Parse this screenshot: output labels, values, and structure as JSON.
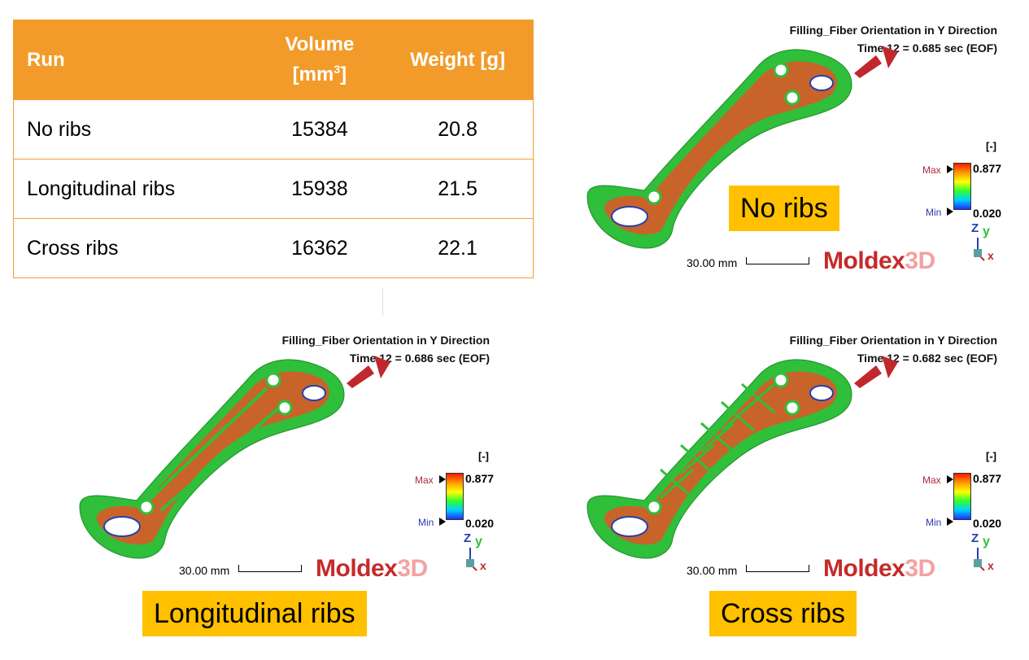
{
  "table": {
    "headers": {
      "run": "Run",
      "volume": "Volume",
      "volume_unit": "[mm",
      "volume_exp": "3",
      "volume_close": "]",
      "weight": "Weight [g]"
    },
    "rows": [
      {
        "run": "No ribs",
        "volume": "15384",
        "weight": "20.8"
      },
      {
        "run": "Longitudinal ribs",
        "volume": "15938",
        "weight": "21.5"
      },
      {
        "run": "Cross ribs",
        "volume": "16362",
        "weight": "22.1"
      }
    ]
  },
  "panels": [
    {
      "title": "Filling_Fiber Orientation in Y Direction",
      "time": "Time 12 = 0.685 sec (EOF)",
      "unit": "[-]",
      "max_label": "Max",
      "max_value": "0.877",
      "min_label": "Min",
      "min_value": "0.020",
      "scale": "30.00 mm",
      "label": "No ribs"
    },
    {
      "title": "Filling_Fiber Orientation in Y Direction",
      "time": "Time 12 = 0.686 sec (EOF)",
      "unit": "[-]",
      "max_label": "Max",
      "max_value": "0.877",
      "min_label": "Min",
      "min_value": "0.020",
      "scale": "30.00 mm",
      "label": "Longitudinal ribs"
    },
    {
      "title": "Filling_Fiber Orientation in Y Direction",
      "time": "Time 12 = 0.682 sec (EOF)",
      "unit": "[-]",
      "max_label": "Max",
      "max_value": "0.877",
      "min_label": "Min",
      "min_value": "0.020",
      "scale": "30.00 mm",
      "label": "Cross ribs"
    }
  ],
  "logo": {
    "main": "Moldex",
    "suffix": "3D"
  },
  "axes": {
    "z": "Z",
    "y": "y",
    "x": "x"
  },
  "colors": {
    "header_bg": "#f29b2a",
    "label_bg": "#ffc000",
    "part_body": "#c8642a",
    "part_edge": "#2fbf3a",
    "arrow": "#c0282e"
  }
}
